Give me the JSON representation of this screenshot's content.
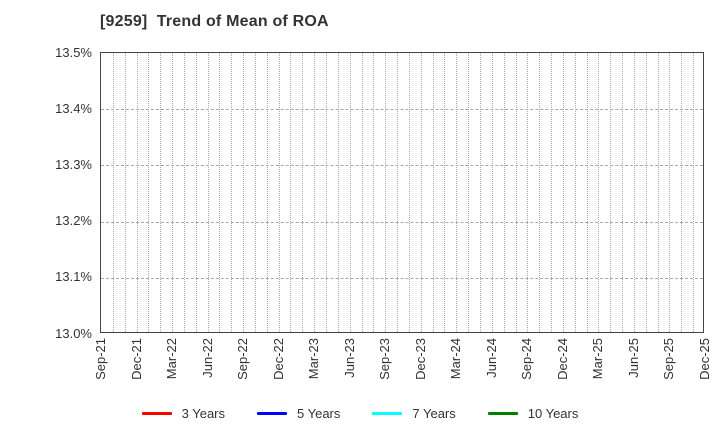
{
  "chart_data": {
    "type": "line",
    "title": "[9259]  Trend of Mean of ROA",
    "xlabel": "",
    "ylabel": "",
    "ylim": [
      13.0,
      13.5
    ],
    "y_ticks": [
      {
        "value": 13.5,
        "label": "13.5%"
      },
      {
        "value": 13.4,
        "label": "13.4%"
      },
      {
        "value": 13.3,
        "label": "13.3%"
      },
      {
        "value": 13.2,
        "label": "13.2%"
      },
      {
        "value": 13.1,
        "label": "13.1%"
      },
      {
        "value": 13.0,
        "label": "13.0%"
      }
    ],
    "x_tick_labels": [
      "Sep-21",
      "Dec-21",
      "Mar-22",
      "Jun-22",
      "Sep-22",
      "Dec-22",
      "Mar-23",
      "Jun-23",
      "Sep-23",
      "Dec-23",
      "Mar-24",
      "Jun-24",
      "Sep-24",
      "Dec-24",
      "Mar-25",
      "Jun-25",
      "Sep-25",
      "Dec-25"
    ],
    "minor_x_ticks_per_interval": 3,
    "total_month_intervals": 51,
    "grid": true,
    "grid_color": "#a9a9a9",
    "axis_color": "#444444",
    "text_color": "#333333",
    "legend_position": "bottom",
    "series": [
      {
        "name": "3 Years",
        "color": "#ff0000",
        "values": []
      },
      {
        "name": "5 Years",
        "color": "#0000ff",
        "values": []
      },
      {
        "name": "7 Years",
        "color": "#00ffff",
        "values": []
      },
      {
        "name": "10 Years",
        "color": "#008000",
        "values": []
      }
    ]
  }
}
